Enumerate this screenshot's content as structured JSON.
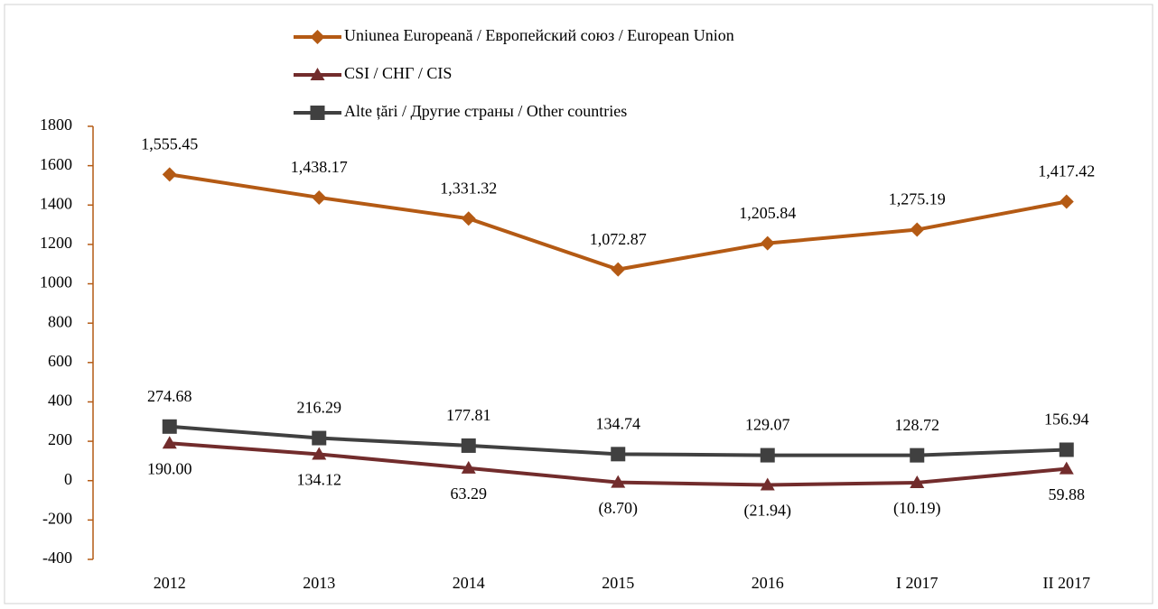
{
  "chart_data": {
    "type": "line",
    "categories": [
      "2012",
      "2013",
      "2014",
      "2015",
      "2016",
      "I 2017",
      "II 2017"
    ],
    "series": [
      {
        "name": "Uniunea Europeană / Европейский союз / European Union",
        "color": "#b45a14",
        "marker": "diamond",
        "label_position": "above",
        "values": [
          1555.45,
          1438.17,
          1331.32,
          1072.87,
          1205.84,
          1275.19,
          1417.42
        ],
        "value_labels": [
          "1,555.45",
          "1,438.17",
          "1,331.32",
          "1,072.87",
          "1,205.84",
          "1,275.19",
          "1,417.42"
        ]
      },
      {
        "name": "CSI / СНГ / CIS",
        "color": "#722c2c",
        "marker": "triangle",
        "label_position": "below",
        "values": [
          190.0,
          134.12,
          63.29,
          -8.7,
          -21.94,
          -10.19,
          59.88
        ],
        "value_labels": [
          "190.00",
          "134.12",
          "63.29",
          "(8.70)",
          "(21.94)",
          "(10.19)",
          "59.88"
        ]
      },
      {
        "name": "Alte țări / Другие страны / Other countries",
        "color": "#404040",
        "marker": "square",
        "label_position": "above",
        "values": [
          274.68,
          216.29,
          177.81,
          134.74,
          129.07,
          128.72,
          156.94
        ],
        "value_labels": [
          "274.68",
          "216.29",
          "177.81",
          "134.74",
          "129.07",
          "128.72",
          "156.94"
        ]
      }
    ],
    "ylim": [
      -400,
      1800
    ],
    "yticks": [
      -400,
      -200,
      0,
      200,
      400,
      600,
      800,
      1000,
      1200,
      1400,
      1600,
      1800
    ],
    "grid": false,
    "legend": "top"
  }
}
